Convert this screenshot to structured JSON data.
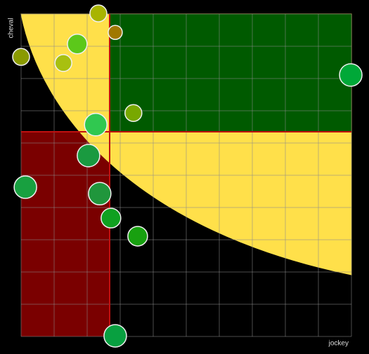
{
  "chart_data": {
    "type": "scatter",
    "x_label": "jockey",
    "y_label": "cheval",
    "xlim": [
      0,
      10
    ],
    "ylim": [
      0,
      10
    ],
    "xticks": [
      0,
      1,
      2,
      3,
      4,
      5,
      6,
      7,
      8,
      9,
      10
    ],
    "yticks": [
      0,
      1,
      2,
      3,
      4,
      5,
      6,
      7,
      8,
      9,
      10
    ],
    "grid": true,
    "x": [
      2.34,
      2.85,
      1.7,
      0,
      1.28,
      9.98,
      3.4,
      2.26,
      2.04,
      0.13,
      2.38,
      2.72,
      3.53,
      2.85
    ],
    "values": [
      10.02,
      9.43,
      9.07,
      8.67,
      8.48,
      8.11,
      6.93,
      6.57,
      5.61,
      4.63,
      4.43,
      3.67,
      3.11,
      0.02
    ],
    "sizes": [
      12,
      10,
      14,
      12,
      12,
      16,
      12,
      16,
      16,
      16,
      16,
      14,
      14,
      16
    ],
    "colors": [
      "#a8b400",
      "#a07800",
      "#5cc81a",
      "#8a9a00",
      "#a8c010",
      "#00a838",
      "#78a800",
      "#30c850",
      "#1a9a40",
      "#18a040",
      "#20963c",
      "#10a020",
      "#18a010",
      "#08a040"
    ]
  }
}
